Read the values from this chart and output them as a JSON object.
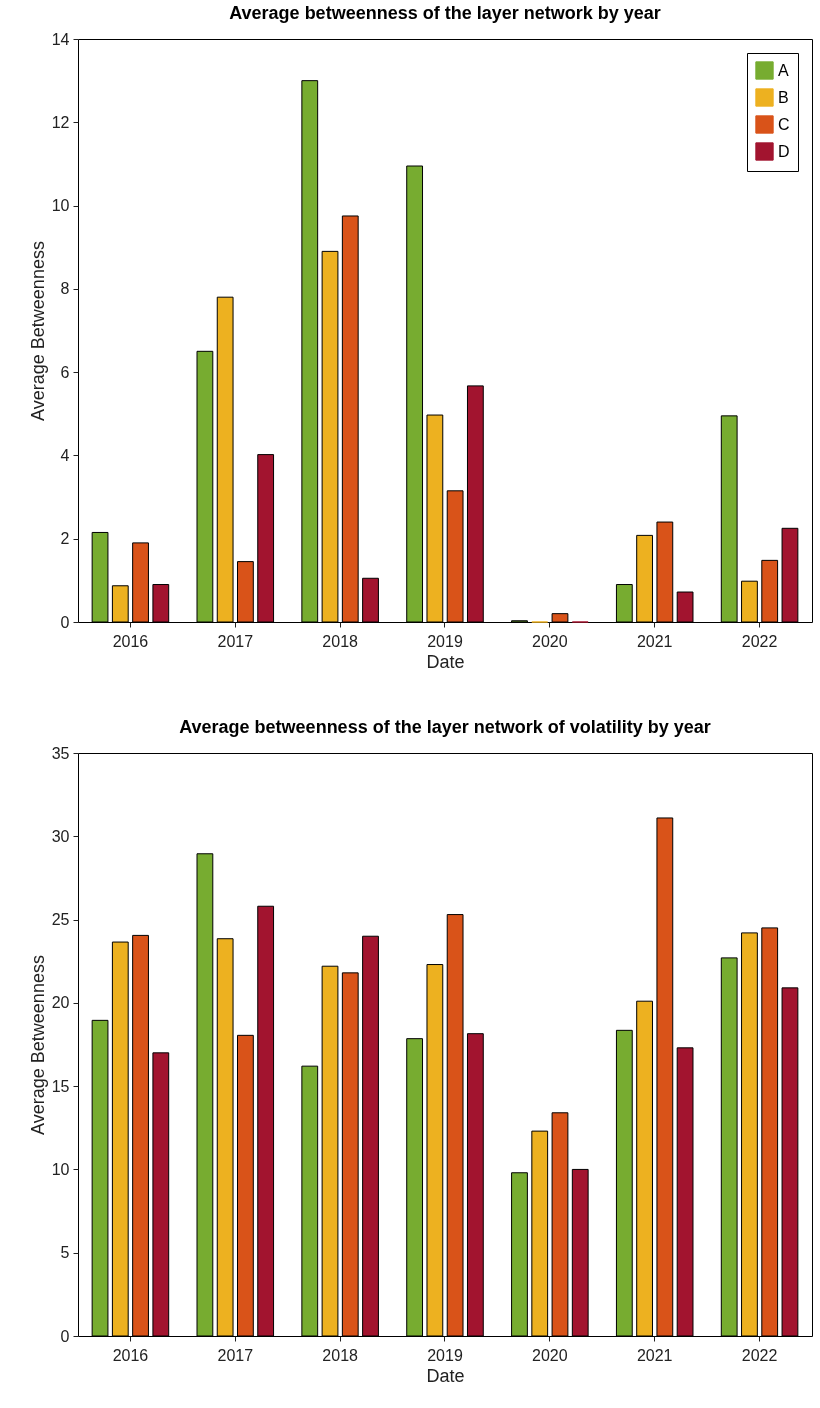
{
  "chart_data": [
    {
      "type": "bar",
      "title": "Average betweenness of the layer network by year",
      "xlabel": "Date",
      "ylabel": "Average Betweenness",
      "categories": [
        "2016",
        "2017",
        "2018",
        "2019",
        "2020",
        "2021",
        "2022"
      ],
      "ylim": [
        0,
        14
      ],
      "yticks": [
        0,
        2,
        4,
        6,
        8,
        10,
        12,
        14
      ],
      "legend": "top right",
      "grid": false,
      "series": [
        {
          "name": "A",
          "color": "#77ac30",
          "values": [
            2.15,
            6.5,
            13.0,
            10.95,
            0.03,
            0.9,
            4.95
          ]
        },
        {
          "name": "B",
          "color": "#edb120",
          "values": [
            0.87,
            7.8,
            8.9,
            4.97,
            0,
            2.08,
            0.98
          ]
        },
        {
          "name": "C",
          "color": "#d95319",
          "values": [
            1.9,
            1.45,
            9.75,
            3.15,
            0.2,
            2.4,
            1.48
          ]
        },
        {
          "name": "D",
          "color": "#a2142f",
          "values": [
            0.9,
            4.02,
            1.05,
            5.67,
            0,
            0.72,
            2.25
          ]
        }
      ]
    },
    {
      "type": "bar",
      "title": "Average betweenness of the layer network of volatility by year",
      "xlabel": "Date",
      "ylabel": "Average Betweenness",
      "categories": [
        "2016",
        "2017",
        "2018",
        "2019",
        "2020",
        "2021",
        "2022"
      ],
      "ylim": [
        0,
        35
      ],
      "yticks": [
        0,
        5,
        10,
        15,
        20,
        25,
        30,
        35
      ],
      "legend": "top right",
      "grid": false,
      "series": [
        {
          "name": "A",
          "color": "#77ac30",
          "values": [
            18.95,
            28.95,
            16.2,
            17.85,
            9.8,
            18.35,
            22.7
          ]
        },
        {
          "name": "B",
          "color": "#edb120",
          "values": [
            23.65,
            23.85,
            22.2,
            22.3,
            12.3,
            20.1,
            24.2
          ]
        },
        {
          "name": "C",
          "color": "#d95319",
          "values": [
            24.05,
            18.05,
            21.8,
            25.3,
            13.4,
            31.1,
            24.5
          ]
        },
        {
          "name": "D",
          "color": "#a2142f",
          "values": [
            17.0,
            25.8,
            24.0,
            18.15,
            10.0,
            17.3,
            20.9
          ]
        }
      ]
    }
  ]
}
